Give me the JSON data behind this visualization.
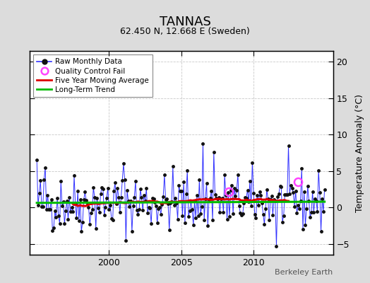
{
  "title": "TANNAS",
  "subtitle": "62.450 N, 12.668 E (Sweden)",
  "ylabel": "Temperature Anomaly (°C)",
  "watermark": "Berkeley Earth",
  "xlim": [
    1994.5,
    2015.5
  ],
  "ylim": [
    -6.5,
    21.5
  ],
  "yticks": [
    -5,
    0,
    5,
    10,
    15,
    20
  ],
  "xticks": [
    2000,
    2005,
    2010
  ],
  "raw_color": "#3333FF",
  "raw_marker_color": "#111111",
  "moving_avg_color": "#DD0000",
  "trend_color": "#00BB00",
  "qc_fail_color": "#FF44FF",
  "background_color": "#DCDCDC",
  "plot_bg_color": "#FFFFFF",
  "grid_color": "#BBBBBB",
  "title_fontsize": 13,
  "subtitle_fontsize": 9,
  "seed": 42,
  "start_year": 1995,
  "end_year": 2014,
  "trend_value": 0.7,
  "trend_slope": 0.008,
  "qc1_x": 2008.3,
  "qc1_y": 2.2,
  "qc2_x": 2013.1,
  "qc2_y": 3.5
}
